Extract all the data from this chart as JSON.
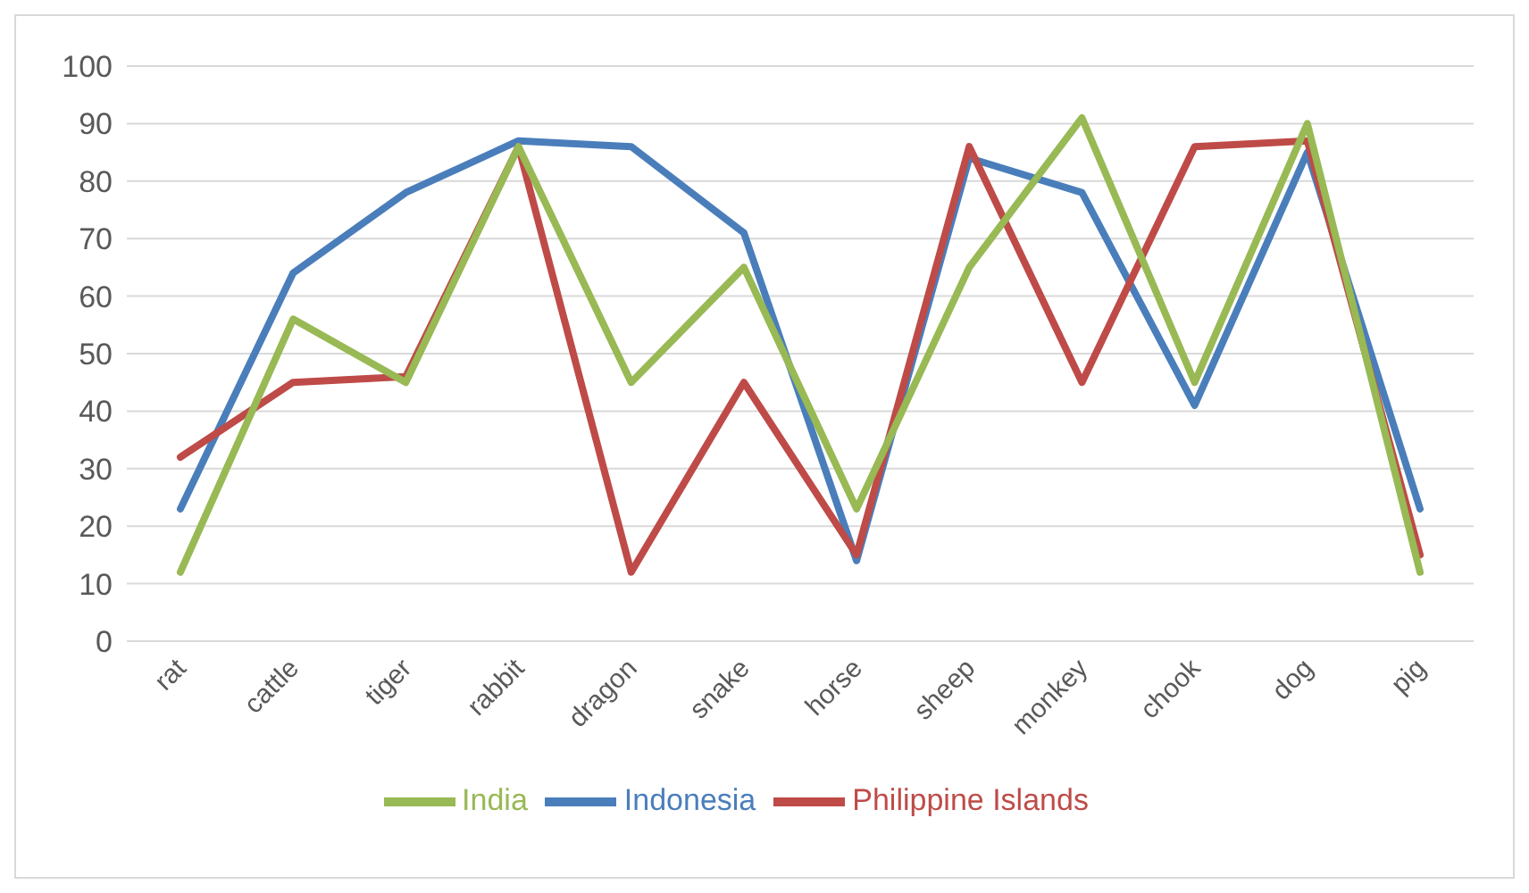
{
  "chart_data": {
    "type": "line",
    "categories": [
      "rat",
      "cattle",
      "tiger",
      "rabbit",
      "dragon",
      "snake",
      "horse",
      "sheep",
      "monkey",
      "chook",
      "dog",
      "pig"
    ],
    "series": [
      {
        "name": "Indonesia",
        "color": "#4a7ebb",
        "values": [
          23,
          64,
          78,
          87,
          86,
          71,
          14,
          84,
          78,
          41,
          85,
          23
        ]
      },
      {
        "name": "Philippine Islands",
        "color": "#be4b48",
        "values": [
          32,
          45,
          46,
          86,
          12,
          45,
          15,
          86,
          45,
          86,
          87,
          15
        ]
      },
      {
        "name": "India",
        "color": "#98b954",
        "values": [
          12,
          56,
          45,
          86,
          45,
          65,
          23,
          65,
          91,
          45,
          90,
          12
        ]
      }
    ],
    "ylim": [
      0,
      100
    ],
    "yticks": [
      0,
      10,
      20,
      30,
      40,
      50,
      60,
      70,
      80,
      90,
      100
    ],
    "grid": "y",
    "legend": "bottom",
    "marker": "none",
    "line_style": "solid"
  }
}
